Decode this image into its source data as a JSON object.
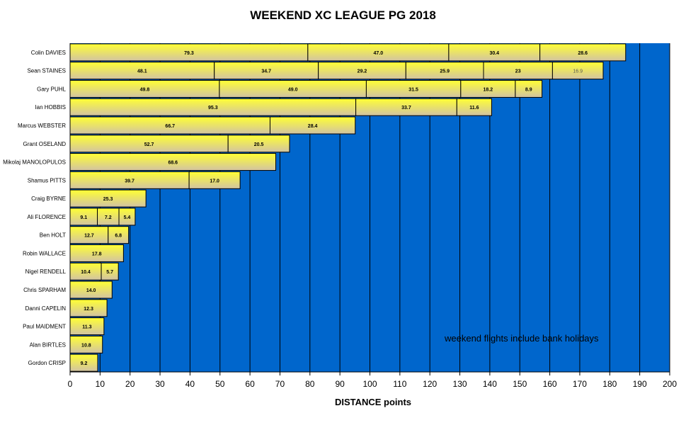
{
  "chart_data": {
    "type": "bar",
    "orientation": "horizontal",
    "stacked": true,
    "title": "WEEKEND XC LEAGUE PG 2018",
    "xlabel": "DISTANCE  points",
    "ylabel": "",
    "xlim": [
      0,
      200
    ],
    "xticks": [
      0,
      10,
      20,
      30,
      40,
      50,
      60,
      70,
      80,
      90,
      100,
      110,
      120,
      130,
      140,
      150,
      160,
      170,
      180,
      190,
      200
    ],
    "grid": true,
    "annotation": "weekend flights include bank holidays",
    "colors": {
      "plot_background": "#0066cc",
      "bar_light": "#ffff33",
      "bar_dark": "#d2c3a2",
      "grid": "#000000"
    },
    "categories": [
      {
        "name": "Colin DAVIES",
        "flights": [
          79.3,
          47.0,
          30.4,
          28.6
        ]
      },
      {
        "name": "Sean STAINES",
        "flights": [
          48.1,
          34.7,
          29.2,
          25.9,
          23,
          16.9
        ]
      },
      {
        "name": "Gary PUHL",
        "flights": [
          49.8,
          49.0,
          31.5,
          18.2,
          8.9
        ]
      },
      {
        "name": "Ian HOBBIS",
        "flights": [
          95.3,
          33.7,
          11.6
        ]
      },
      {
        "name": "Marcus WEBSTER",
        "flights": [
          66.7,
          28.4
        ]
      },
      {
        "name": "Grant OSELAND",
        "flights": [
          52.7,
          20.5
        ]
      },
      {
        "name": "Mikolaj MANOLOPULOS",
        "flights": [
          68.6
        ]
      },
      {
        "name": "Shamus PITTS",
        "flights": [
          39.7,
          17.0
        ]
      },
      {
        "name": "Craig BYRNE",
        "flights": [
          25.3
        ]
      },
      {
        "name": "Ali FLORENCE",
        "flights": [
          9.1,
          7.2,
          5.4
        ]
      },
      {
        "name": "Ben HOLT",
        "flights": [
          12.7,
          6.8
        ]
      },
      {
        "name": "Robin WALLACE",
        "flights": [
          17.8
        ]
      },
      {
        "name": "Nigel RENDELL",
        "flights": [
          10.4,
          5.7
        ]
      },
      {
        "name": "Chris SPARHAM",
        "flights": [
          14.0
        ]
      },
      {
        "name": "Danni CAPELIN",
        "flights": [
          12.3
        ]
      },
      {
        "name": "Paul MAIDMENT",
        "flights": [
          11.3
        ]
      },
      {
        "name": "Alan BIRTLES",
        "flights": [
          10.8
        ]
      },
      {
        "name": "Gordon CRISP",
        "flights": [
          9.2
        ]
      }
    ],
    "label_strings": [
      [
        "79.3",
        "47.0",
        "30.4",
        "28.6"
      ],
      [
        "48.1",
        "34.7",
        "29.2",
        "25.9",
        "23",
        "16.9"
      ],
      [
        "49.8",
        "49.0",
        "31.5",
        "18.2",
        "8.9"
      ],
      [
        "95.3",
        "33.7",
        "11.6"
      ],
      [
        "66.7",
        "28.4"
      ],
      [
        "52.7",
        "20.5"
      ],
      [
        "68.6"
      ],
      [
        "39.7",
        "17.0"
      ],
      [
        "25.3"
      ],
      [
        "9.1",
        "7.2",
        "5.4"
      ],
      [
        "12.7",
        "6.8"
      ],
      [
        "17.8"
      ],
      [
        "10.4",
        "5.7"
      ],
      [
        "14.0"
      ],
      [
        "12.3"
      ],
      [
        "11.3"
      ],
      [
        "10.8"
      ],
      [
        "9.2"
      ]
    ]
  }
}
